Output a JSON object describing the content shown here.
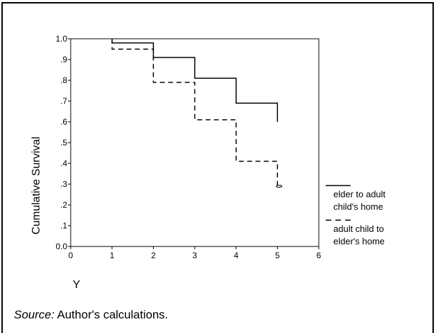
{
  "chart_data": {
    "type": "line",
    "step": true,
    "title": "",
    "xlabel": "Y",
    "ylabel": "Cumulative Survival",
    "xlim": [
      0,
      6
    ],
    "ylim": [
      0.0,
      1.0
    ],
    "x_ticks": [
      "0",
      "1",
      "2",
      "3",
      "4",
      "5",
      "6"
    ],
    "y_ticks": [
      "0.0",
      ".1",
      ".2",
      ".3",
      ".4",
      ".5",
      ".6",
      ".7",
      ".8",
      ".9",
      "1.0"
    ],
    "grid": false,
    "legend_position": "right",
    "series": [
      {
        "name": "elder to adult child's home",
        "line_style": "solid",
        "color": "#000000",
        "x": [
          1,
          2,
          3,
          4,
          5,
          5.0
        ],
        "y": [
          0.98,
          0.91,
          0.81,
          0.69,
          0.69,
          0.6
        ]
      },
      {
        "name": "adult child to elder's home",
        "line_style": "dashed",
        "color": "#000000",
        "x": [
          1,
          2,
          3,
          4,
          5,
          5.0
        ],
        "y": [
          0.95,
          0.79,
          0.61,
          0.41,
          0.41,
          0.29
        ]
      }
    ],
    "censor_mark": {
      "series": 1,
      "x": 5.04,
      "y": 0.29
    }
  },
  "legend": {
    "items": [
      {
        "line_style": "solid",
        "lines": [
          "elder to adult",
          "child's home"
        ]
      },
      {
        "line_style": "dashed",
        "lines": [
          "adult child to",
          "elder's home"
        ]
      }
    ]
  },
  "source": {
    "label": "Source:",
    "text": "Author's calculations."
  }
}
